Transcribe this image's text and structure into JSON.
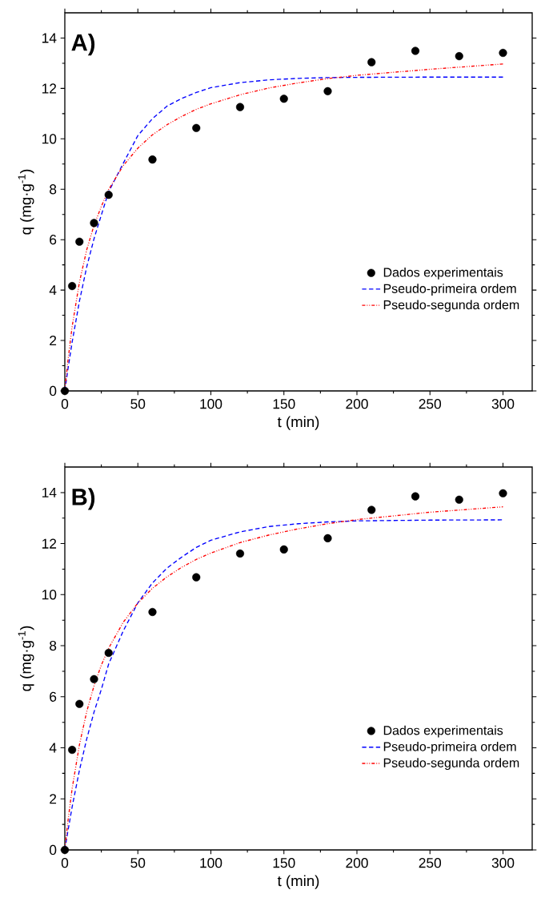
{
  "chart_data": [
    {
      "type": "scatter",
      "xlabel": "t (min)",
      "ylabel": "q (mg·g$^{-1}$)",
      "annotations": [
        "A)"
      ],
      "xlim": [
        0,
        320
      ],
      "ylim": [
        0,
        15
      ],
      "xticks": [
        0,
        50,
        100,
        150,
        200,
        250,
        300
      ],
      "yticks": [
        0,
        2,
        4,
        6,
        8,
        10,
        12,
        14
      ],
      "legend": "bottom right",
      "grid": false,
      "series": [
        {
          "name": "Dados experimentais",
          "type": "scatter",
          "marker": "circle",
          "color": "#000000",
          "x": [
            0,
            5,
            10,
            20,
            30,
            60,
            90,
            120,
            150,
            180,
            210,
            240,
            270,
            300
          ],
          "values": [
            0,
            4.16,
            5.92,
            6.66,
            7.78,
            9.18,
            10.43,
            11.26,
            11.59,
            11.89,
            13.04,
            13.49,
            13.28,
            13.41
          ]
        },
        {
          "name": "Pseudo-primeira ordem",
          "type": "line",
          "line_style": "dashed",
          "color": "#0000ff",
          "x": [
            0,
            2,
            5,
            10,
            15,
            20,
            25,
            30,
            40,
            50,
            60,
            70,
            80,
            90,
            100,
            120,
            140,
            160,
            180,
            200,
            250,
            300
          ],
          "values": [
            0,
            0.81,
            1.93,
            3.56,
            4.92,
            6.04,
            6.98,
            7.9,
            9.03,
            10.13,
            10.8,
            11.3,
            11.6,
            11.84,
            12.03,
            12.23,
            12.34,
            12.4,
            12.43,
            12.44,
            12.45,
            12.45
          ]
        },
        {
          "name": "Pseudo-segunda ordem",
          "type": "line",
          "line_style": "dotted",
          "color": "#ff0000",
          "x": [
            0,
            2,
            5,
            10,
            15,
            20,
            25,
            30,
            40,
            50,
            60,
            70,
            80,
            90,
            100,
            120,
            140,
            160,
            180,
            200,
            250,
            300
          ],
          "values": [
            0,
            1.14,
            2.55,
            4.31,
            5.6,
            6.57,
            7.32,
            7.99,
            8.94,
            9.63,
            10.16,
            10.56,
            10.89,
            11.17,
            11.39,
            11.75,
            12.02,
            12.22,
            12.39,
            12.52,
            12.76,
            12.97
          ]
        }
      ]
    },
    {
      "type": "scatter",
      "xlabel": "t (min)",
      "ylabel": "q (mg·g$^{-1}$)",
      "annotations": [
        "B)"
      ],
      "xlim": [
        0,
        320
      ],
      "ylim": [
        0,
        15
      ],
      "xticks": [
        0,
        50,
        100,
        150,
        200,
        250,
        300
      ],
      "yticks": [
        0,
        2,
        4,
        6,
        8,
        10,
        12,
        14
      ],
      "legend": "bottom right",
      "grid": false,
      "series": [
        {
          "name": "Dados experimentais",
          "type": "scatter",
          "marker": "circle",
          "color": "#000000",
          "x": [
            0,
            5,
            10,
            20,
            30,
            60,
            90,
            120,
            150,
            180,
            210,
            240,
            270,
            300
          ],
          "values": [
            0,
            3.92,
            5.72,
            6.69,
            7.72,
            9.32,
            10.68,
            11.61,
            11.77,
            12.21,
            13.32,
            13.85,
            13.72,
            13.97
          ]
        },
        {
          "name": "Pseudo-primeira ordem",
          "type": "line",
          "line_style": "dashed",
          "color": "#0000ff",
          "x": [
            0,
            2,
            5,
            10,
            15,
            20,
            25,
            30,
            40,
            50,
            60,
            70,
            80,
            90,
            100,
            120,
            140,
            160,
            180,
            200,
            250,
            300
          ],
          "values": [
            0,
            0.7,
            1.68,
            3.12,
            4.35,
            5.4,
            6.29,
            7.28,
            8.58,
            9.68,
            10.46,
            11.04,
            11.47,
            11.85,
            12.13,
            12.46,
            12.67,
            12.78,
            12.85,
            12.89,
            12.92,
            12.93
          ]
        },
        {
          "name": "Pseudo-segunda ordem",
          "type": "line",
          "line_style": "dotted",
          "color": "#ff0000",
          "x": [
            0,
            2,
            5,
            10,
            15,
            20,
            25,
            30,
            40,
            50,
            60,
            70,
            80,
            90,
            100,
            120,
            140,
            160,
            180,
            200,
            250,
            300
          ],
          "values": [
            0,
            1.07,
            2.4,
            4.12,
            5.42,
            6.43,
            7.24,
            7.9,
            8.92,
            9.67,
            10.25,
            10.7,
            11.07,
            11.38,
            11.63,
            12.04,
            12.34,
            12.58,
            12.78,
            12.94,
            13.23,
            13.44
          ]
        }
      ]
    }
  ]
}
